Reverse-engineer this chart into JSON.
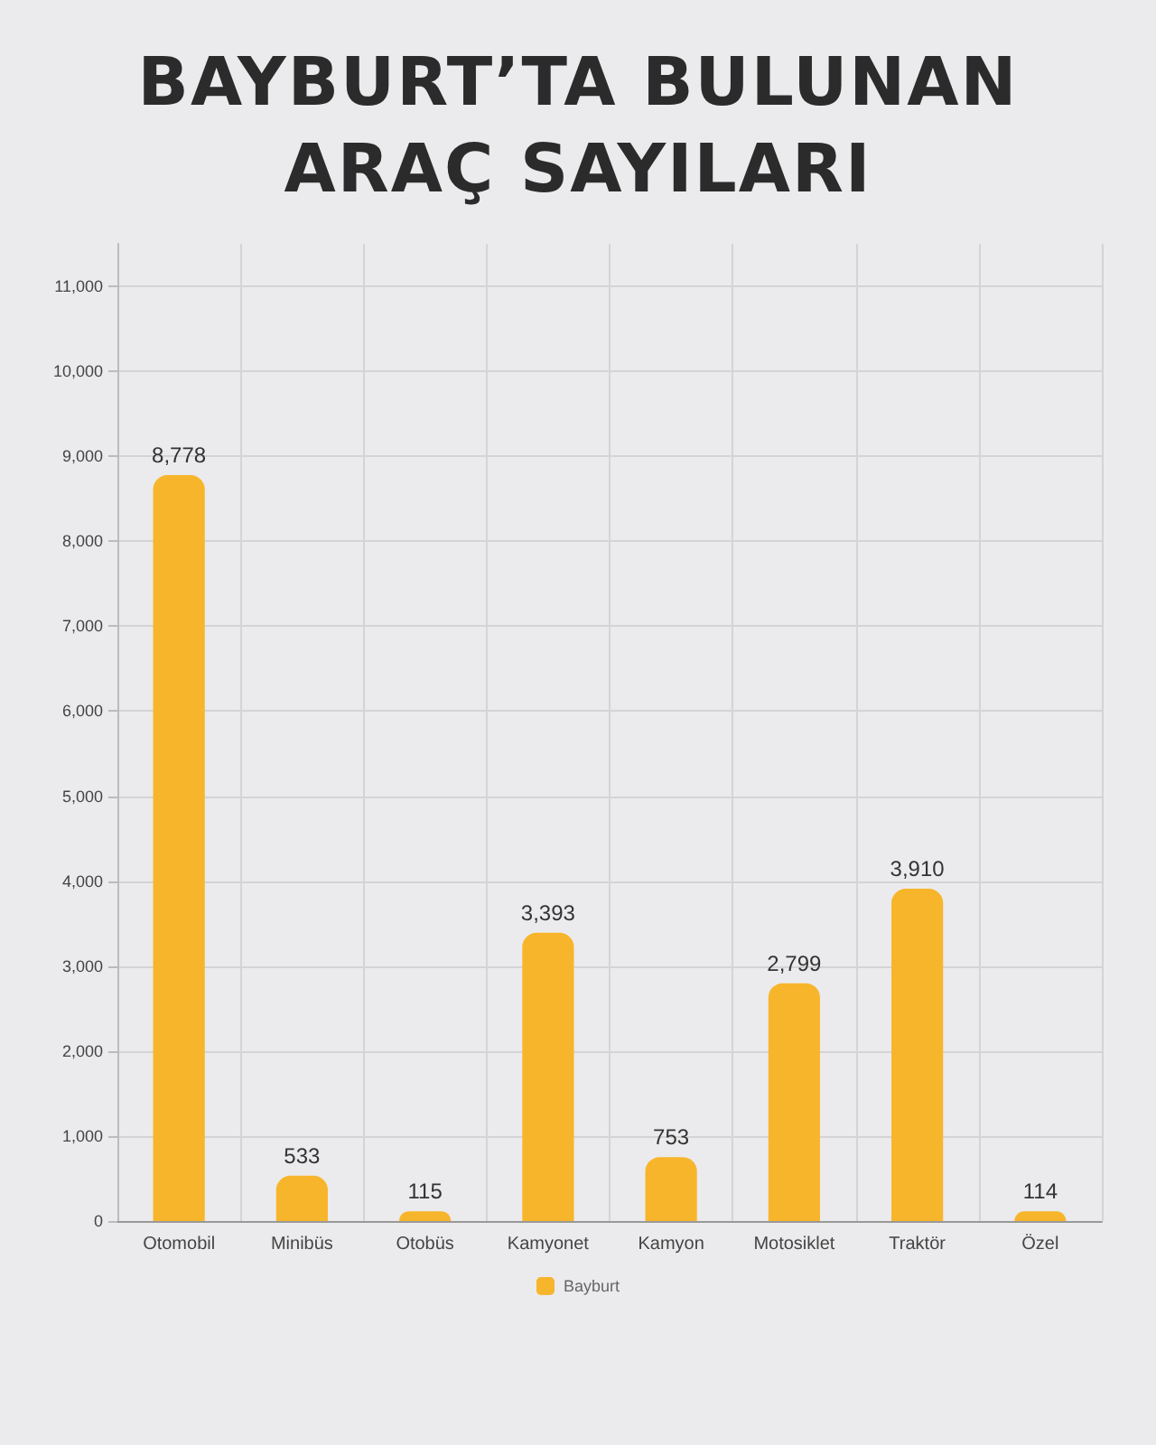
{
  "chart_data": {
    "type": "bar",
    "title": "BAYBURT’TA BULUNAN\nARAÇ SAYILARI",
    "categories": [
      "Otomobil",
      "Minibüs",
      "Otobüs",
      "Kamyonet",
      "Kamyon",
      "Motosiklet",
      "Traktör",
      "Özel"
    ],
    "series": [
      {
        "name": "Bayburt",
        "color": "#f7b52c",
        "values": [
          8778,
          533,
          115,
          3393,
          753,
          2799,
          3910,
          114
        ],
        "value_labels": [
          "8,778",
          "533",
          "115",
          "3,393",
          "753",
          "2,799",
          "3,910",
          "114"
        ]
      }
    ],
    "ylim": [
      0,
      11500
    ],
    "yticks": [
      0,
      {
        "value": 1000,
        "label": "1,000"
      },
      {
        "value": 2000,
        "label": "2,000"
      },
      {
        "value": 3000,
        "label": "3,000"
      },
      {
        "value": 4000,
        "label": "4,000"
      },
      {
        "value": 5000,
        "label": "5,000"
      },
      {
        "value": 6000,
        "label": "6,000"
      },
      {
        "value": 7000,
        "label": "7,000"
      },
      {
        "value": 8000,
        "label": "8,000"
      },
      {
        "value": 9000,
        "label": "9,000"
      },
      {
        "value": 10000,
        "label": "10,000"
      },
      {
        "value": 11000,
        "label": "11,000"
      }
    ],
    "grid": true,
    "legend": "bottom"
  }
}
